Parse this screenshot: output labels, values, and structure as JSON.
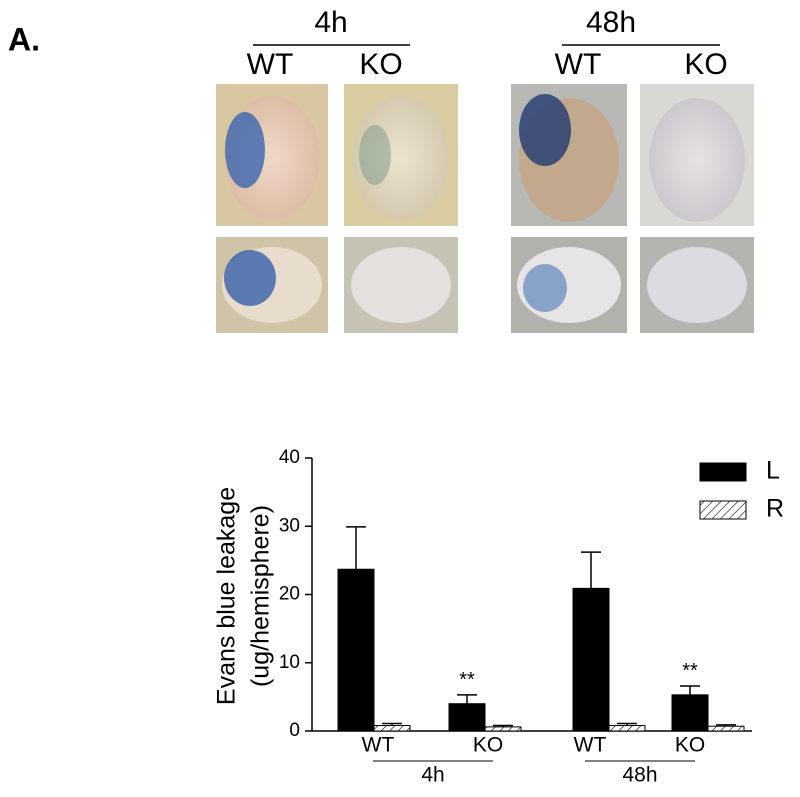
{
  "panel_label": "A.",
  "image_groups": [
    {
      "label": "4h",
      "columns": [
        "WT",
        "KO"
      ]
    },
    {
      "label": "48h",
      "columns": [
        "WT",
        "KO"
      ]
    }
  ],
  "chart_data": {
    "type": "bar",
    "y_label": [
      "Evans blue leakage",
      "(ug/hemisphere)"
    ],
    "categories": [
      "WT",
      "KO",
      "WT",
      "KO"
    ],
    "group_labels": [
      "4h",
      "48h"
    ],
    "annotations": [
      null,
      "**",
      null,
      "**"
    ],
    "series": [
      {
        "name": "L",
        "color": "#000000",
        "hatch": false,
        "values": [
          23.7,
          4.0,
          20.9,
          5.3
        ],
        "errors": [
          6.2,
          1.3,
          5.3,
          1.3
        ]
      },
      {
        "name": "R",
        "color": "#ffffff",
        "hatch": true,
        "values": [
          0.8,
          0.6,
          0.8,
          0.7
        ],
        "errors": [
          0.3,
          0.2,
          0.3,
          0.2
        ]
      }
    ],
    "ylim": [
      0,
      40
    ],
    "yticks": [
      0,
      10,
      20,
      30,
      40
    ],
    "legend": "top-right"
  }
}
